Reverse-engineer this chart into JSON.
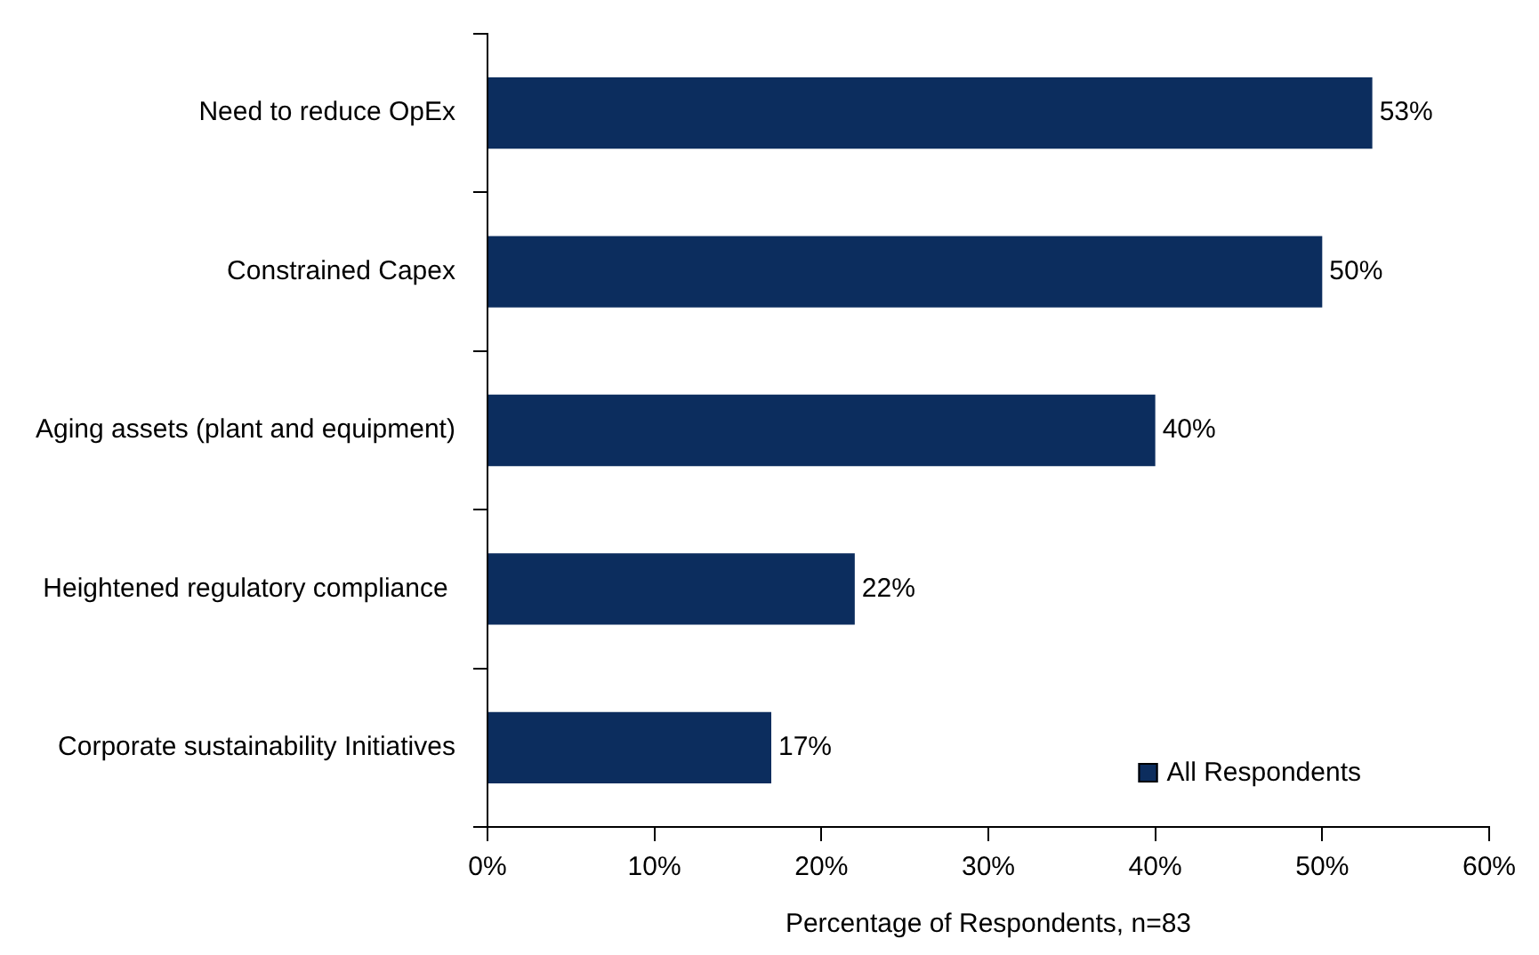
{
  "chart_data": {
    "type": "bar",
    "orientation": "horizontal",
    "xlabel": "Percentage of Respondents, n=83",
    "categories": [
      "Need to reduce OpEx",
      "Constrained Capex",
      "Aging assets (plant and equipment)",
      "Heightened regulatory compliance ",
      "Corporate sustainability Initiatives"
    ],
    "series": [
      {
        "name": "All Respondents",
        "color": "#0c2d5e",
        "values": [
          53,
          50,
          40,
          22,
          17
        ],
        "value_labels": [
          "53%",
          "50%",
          "40%",
          "22%",
          "17%"
        ]
      }
    ],
    "xlim": [
      0,
      60
    ],
    "xticks": [
      {
        "value": 0,
        "label": "0%"
      },
      {
        "value": 10,
        "label": "10%"
      },
      {
        "value": 20,
        "label": "20%"
      },
      {
        "value": 30,
        "label": "30%"
      },
      {
        "value": 40,
        "label": "40%"
      },
      {
        "value": 50,
        "label": "50%"
      },
      {
        "value": 60,
        "label": "60%"
      }
    ],
    "grid": false,
    "legend": "bottom right"
  }
}
